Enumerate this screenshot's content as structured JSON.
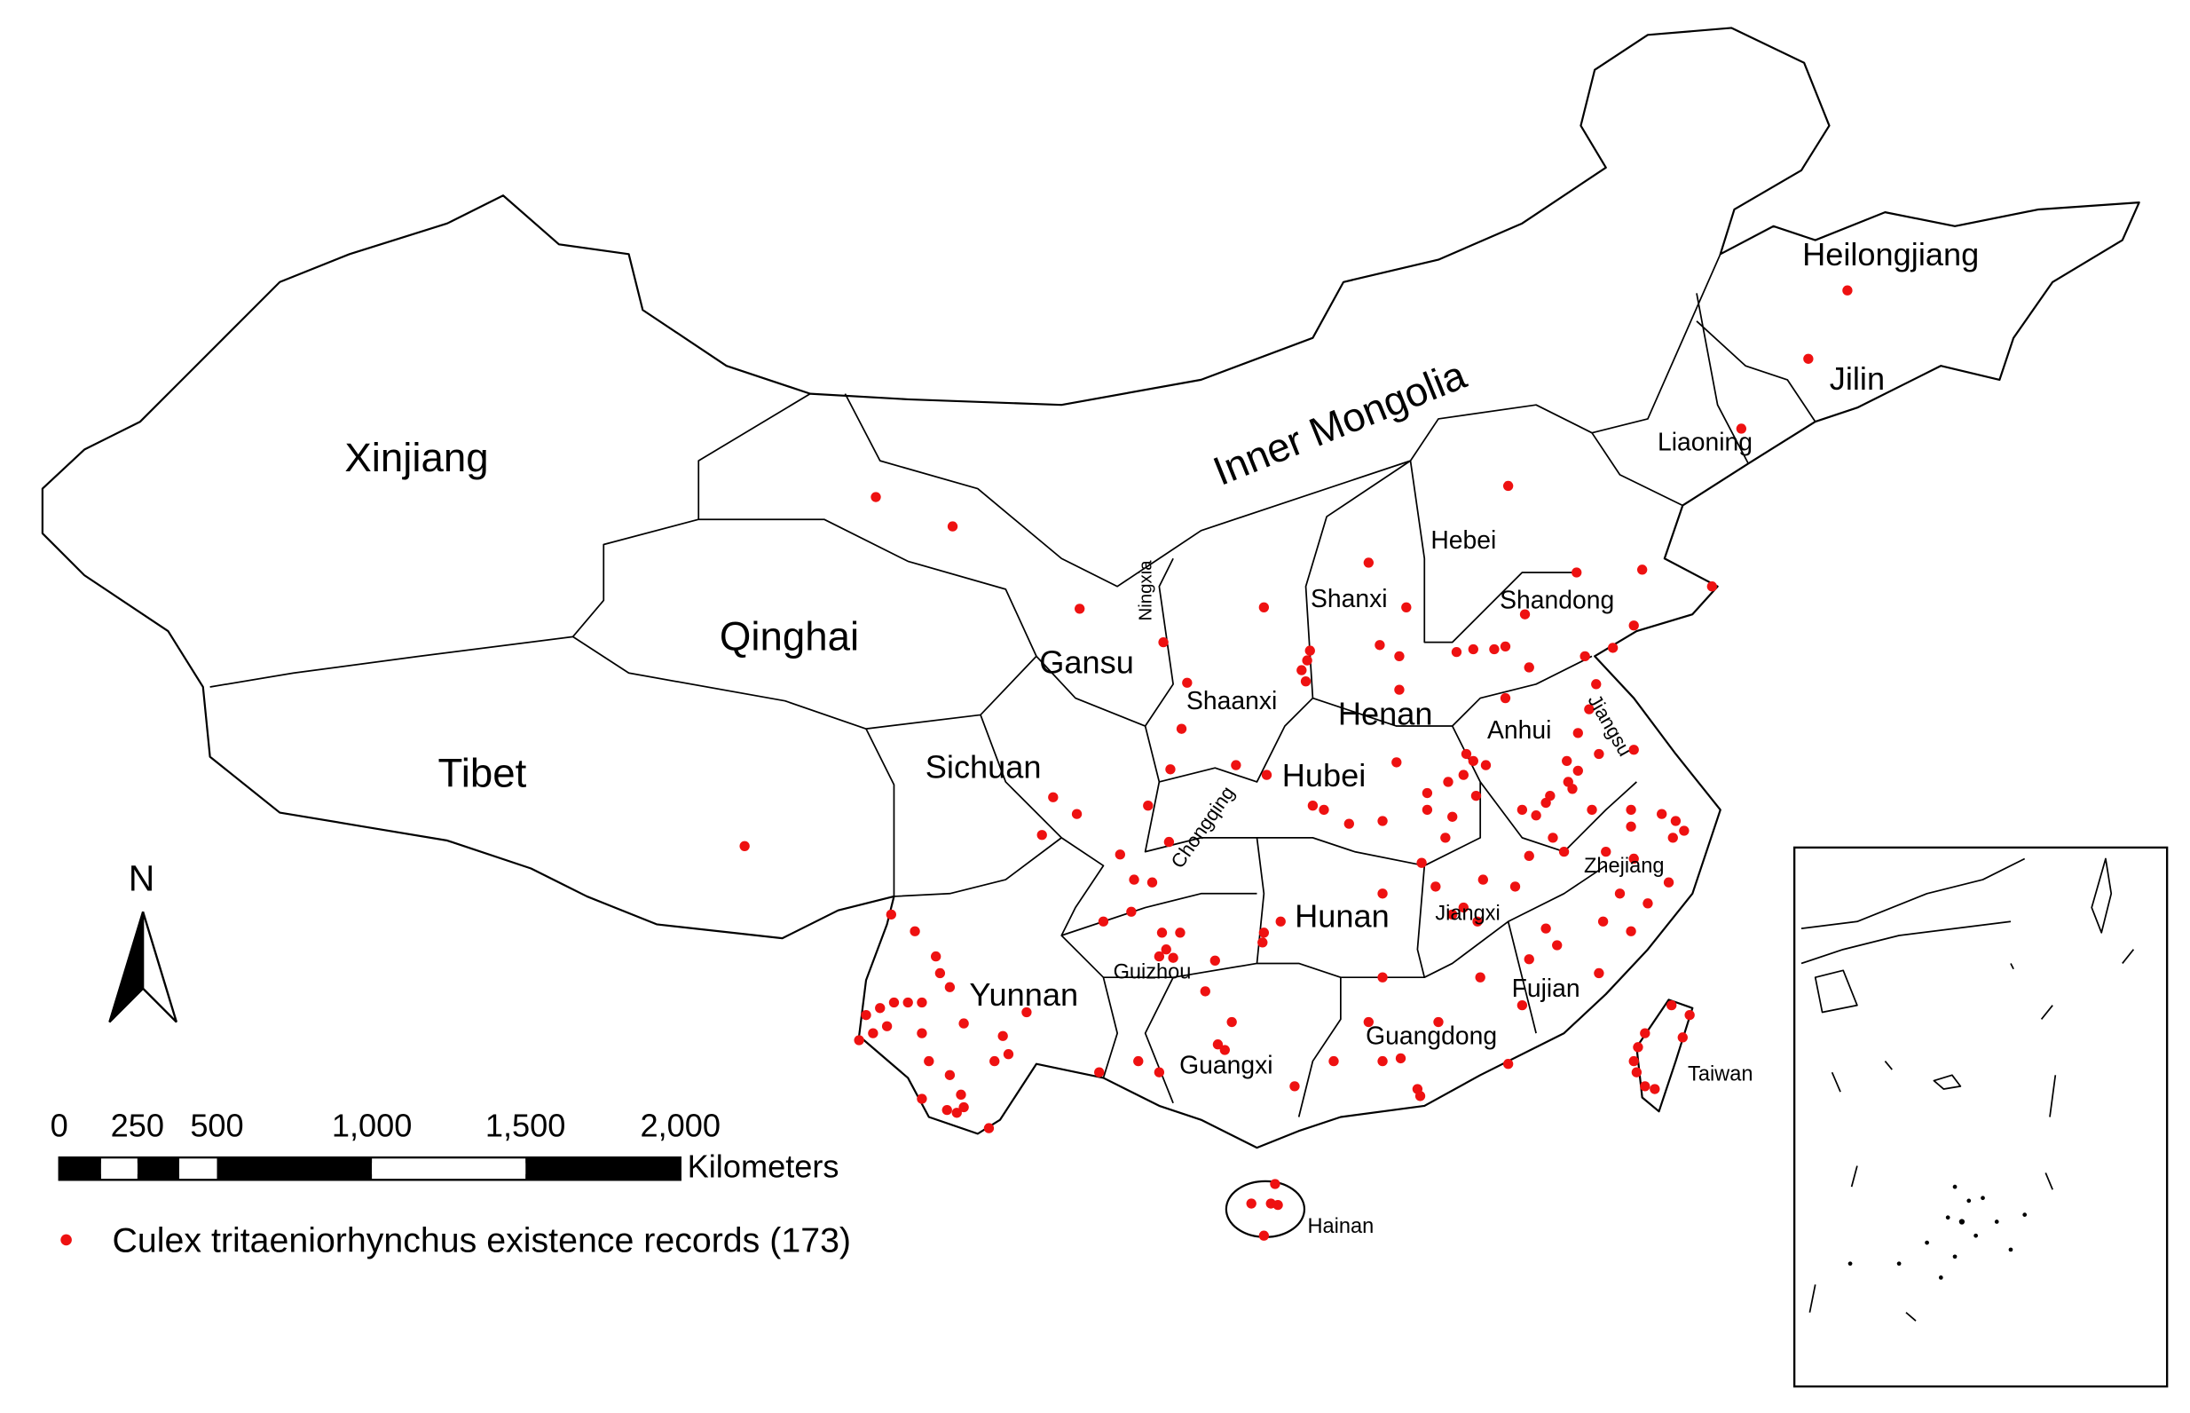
{
  "map": {
    "provinces": [
      "Xinjiang",
      "Tibet",
      "Qinghai",
      "Gansu",
      "Inner Mongolia",
      "Heilongjiang",
      "Jilin",
      "Liaoning",
      "Hebei",
      "Shanxi",
      "Shandong",
      "Ningxia",
      "Shaanxi",
      "Henan",
      "Anhui",
      "Jiangsu",
      "Sichuan",
      "Hubei",
      "Chongqing",
      "Hunan",
      "Jiangxi",
      "Zhejiang",
      "Guizhou",
      "Yunnan",
      "Fujian",
      "Guangxi",
      "Guangdong",
      "Taiwan",
      "Hainan"
    ],
    "north_arrow": "N",
    "scale_bar": {
      "labels": [
        "0",
        "250",
        "500",
        "1,000",
        "1,500",
        "2,000"
      ],
      "unit": "Kilometers"
    },
    "legend": "Culex tritaeniorhynchus existence records (173)"
  }
}
